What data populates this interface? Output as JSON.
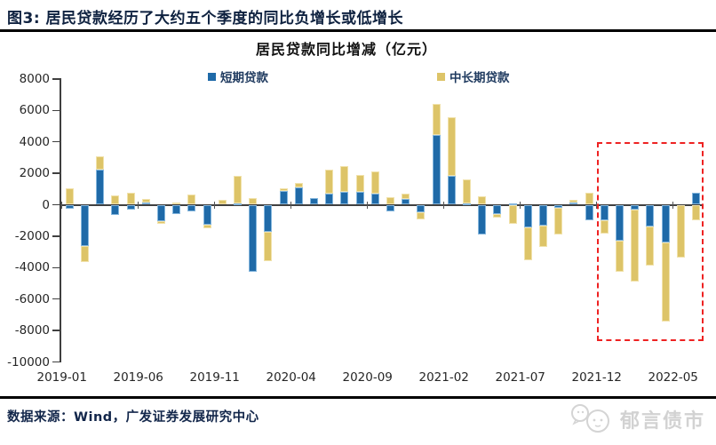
{
  "header": {
    "title": "图3: 居民贷款经历了大约五个季度的同比负增长或低增长"
  },
  "chart": {
    "title": "居民贷款同比增减（亿元）",
    "legend": [
      {
        "label": "短期贷款",
        "color": "#1f6aa8"
      },
      {
        "label": "中长期贷款",
        "color": "#ddc468"
      }
    ]
  },
  "chart_data": {
    "type": "bar",
    "stacked": true,
    "title": "居民贷款同比增减（亿元）",
    "unit": "亿元",
    "grid": false,
    "legend_position": "top",
    "ylim": [
      -10000,
      8000
    ],
    "ytick_step": 2000,
    "categories": [
      "2019-01",
      "2019-02",
      "2019-03",
      "2019-04",
      "2019-05",
      "2019-06",
      "2019-07",
      "2019-08",
      "2019-09",
      "2019-10",
      "2019-11",
      "2019-12",
      "2020-01",
      "2020-02",
      "2020-03",
      "2020-04",
      "2020-05",
      "2020-06",
      "2020-07",
      "2020-08",
      "2020-09",
      "2020-10",
      "2020-11",
      "2020-12",
      "2021-01",
      "2021-02",
      "2021-03",
      "2021-04",
      "2021-05",
      "2021-06",
      "2021-07",
      "2021-08",
      "2021-09",
      "2021-10",
      "2021-11",
      "2021-12",
      "2022-01",
      "2022-02",
      "2022-03",
      "2022-04",
      "2022-05",
      "2022-06"
    ],
    "x_tick_labels": [
      "2019-01",
      "2019-06",
      "2019-11",
      "2020-04",
      "2020-09",
      "2021-02",
      "2021-07",
      "2021-12",
      "2022-05"
    ],
    "series": [
      {
        "name": "短期贷款",
        "color": "#1f6aa8",
        "values": [
          -250,
          -2650,
          2250,
          -650,
          -300,
          150,
          -1050,
          -600,
          -450,
          -1280,
          -50,
          100,
          -4250,
          -1700,
          850,
          1100,
          430,
          730,
          800,
          840,
          680,
          -430,
          340,
          -500,
          4430,
          1810,
          100,
          -1920,
          -580,
          100,
          -1430,
          -1350,
          -180,
          150,
          -970,
          -990,
          -2270,
          -290,
          -1390,
          -2410,
          30,
          780
        ]
      },
      {
        "name": "中长期贷款",
        "color": "#ddc468",
        "values": [
          1050,
          -1000,
          850,
          600,
          750,
          200,
          -150,
          150,
          650,
          -230,
          300,
          1750,
          420,
          -1870,
          200,
          300,
          0,
          1480,
          1650,
          1030,
          1420,
          470,
          360,
          -430,
          1960,
          3740,
          1500,
          530,
          -240,
          -1190,
          -2090,
          -1310,
          -1700,
          160,
          770,
          -830,
          -2020,
          -4570,
          -2500,
          -5040,
          -3380,
          -990
        ]
      }
    ],
    "highlight_box": {
      "from": "2021-12",
      "to": "2022-06",
      "top_value": 4000,
      "bottom_value": -8650,
      "color": "#ee2222",
      "style": "dashed"
    }
  },
  "footer": {
    "source": "数据来源：Wind，广发证券发展研究中心",
    "watermark": "郁言债市"
  }
}
